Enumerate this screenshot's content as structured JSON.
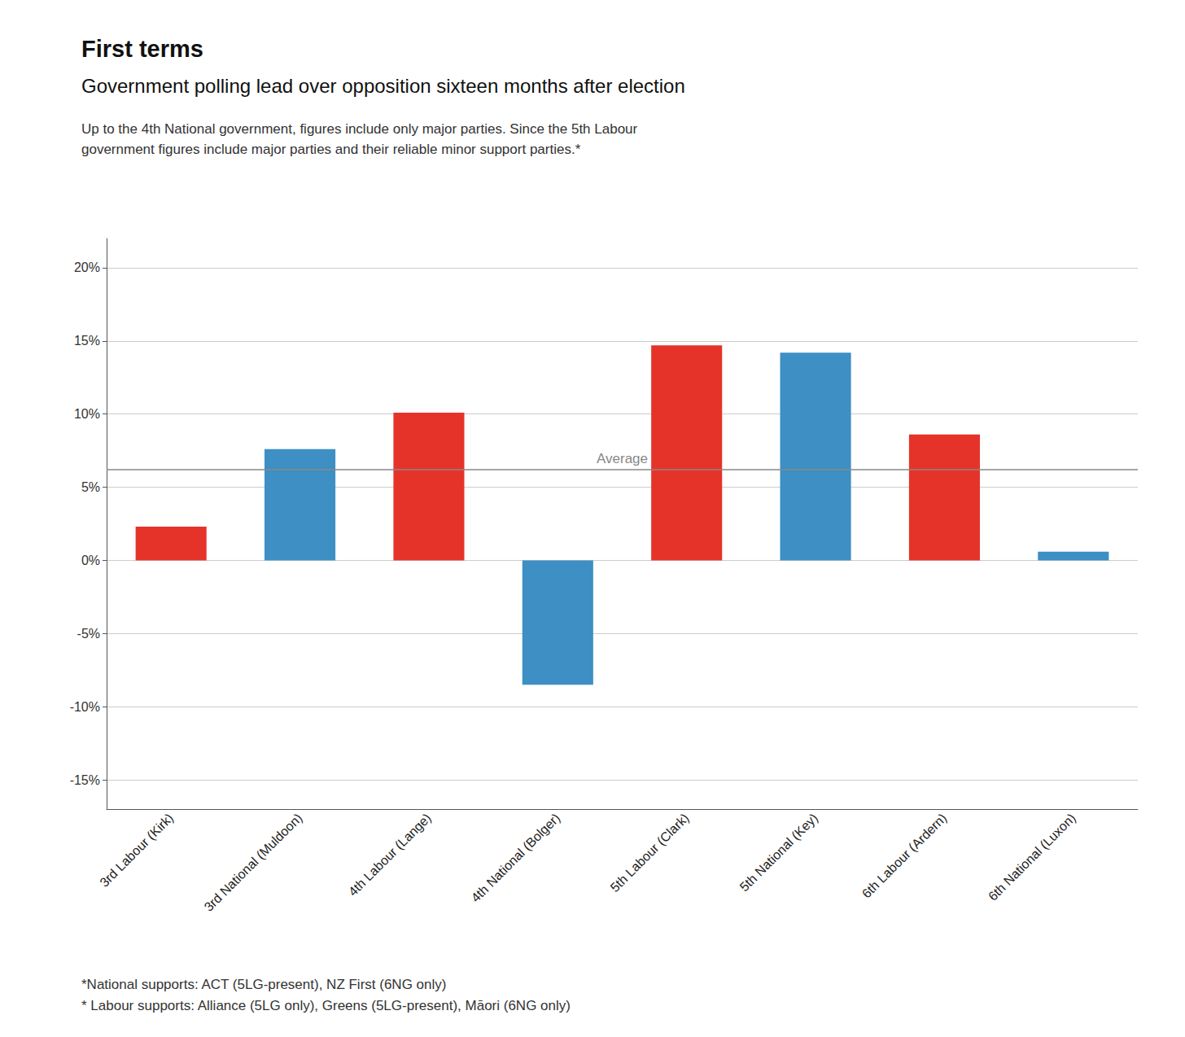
{
  "chart_data": {
    "type": "bar",
    "title": "First terms",
    "subtitle": "Government polling lead over opposition sixteen months after election",
    "notes": [
      "Up to the 4th National government, figures include only major parties. Since the 5th Labour",
      "government figures include major parties and their reliable minor support parties.*"
    ],
    "footnotes": [
      "*National supports: ACT (5LG-present), NZ First (6NG only)",
      "* Labour supports: Alliance (5LG only), Greens (5LG-present), Māori (6NG only)"
    ],
    "categories": [
      "3rd Labour (Kirk)",
      "3rd National (Muldoon)",
      "4th Labour (Lange)",
      "4th National (Bolger)",
      "5th Labour (Clark)",
      "5th National (Key)",
      "6th Labour (Ardern)",
      "6th National (Luxon)"
    ],
    "values": [
      2.3,
      7.6,
      10.1,
      -8.5,
      14.7,
      14.2,
      8.6,
      0.6
    ],
    "colors": [
      "#e63329",
      "#3d8fc4",
      "#e63329",
      "#3d8fc4",
      "#e63329",
      "#3d8fc4",
      "#e63329",
      "#3d8fc4"
    ],
    "average": {
      "value": 6.2,
      "label": "Average",
      "color": "#888888"
    },
    "ylim": [
      -17,
      22
    ],
    "yticks": [
      {
        "value": -15,
        "label": "-15%"
      },
      {
        "value": -10,
        "label": "-10%"
      },
      {
        "value": -5,
        "label": "-5%"
      },
      {
        "value": 0,
        "label": "0%"
      },
      {
        "value": 5,
        "label": "5%"
      },
      {
        "value": 10,
        "label": "10%"
      },
      {
        "value": 15,
        "label": "15%"
      },
      {
        "value": 20,
        "label": "20%"
      }
    ],
    "grid": true
  }
}
